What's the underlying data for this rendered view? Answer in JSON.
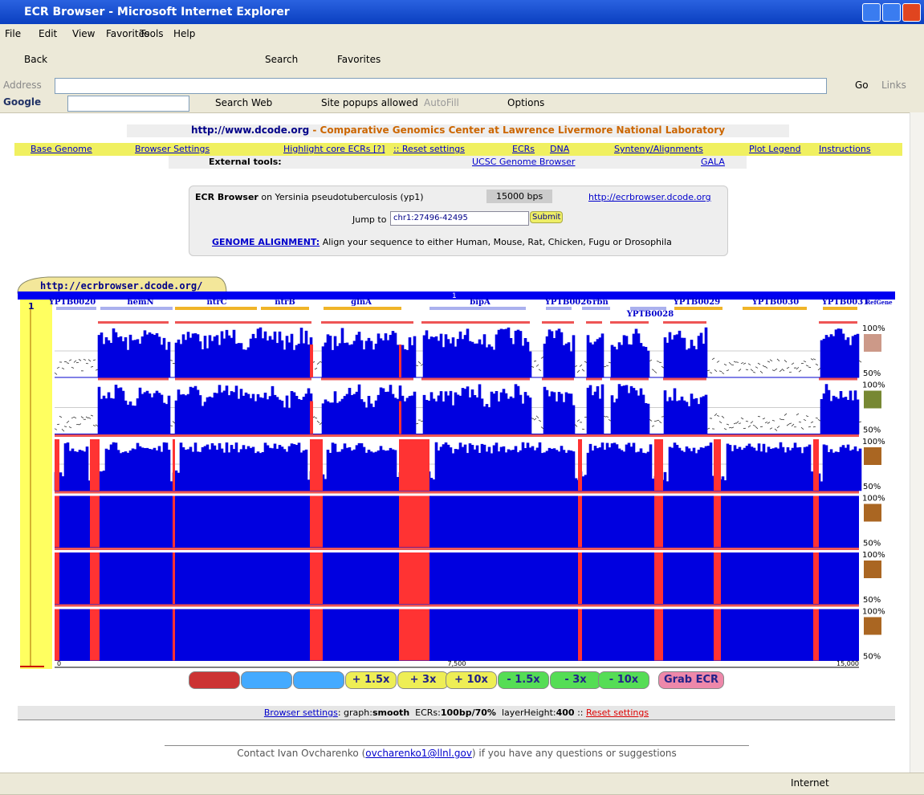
{
  "window": {
    "title": "ECR Browser - Microsoft Internet Explorer"
  },
  "menu": [
    "File",
    "Edit",
    "View",
    "Favorites",
    "Tools",
    "Help"
  ],
  "toolbar": {
    "back": "Back",
    "search": "Search",
    "favorites": "Favorites"
  },
  "address": {
    "label": "Address",
    "go": "Go",
    "links": "Links"
  },
  "google": {
    "logo": "Google",
    "search": "Search Web",
    "popups": "Site popups allowed",
    "autofill": "AutoFill",
    "options": "Options"
  },
  "header": {
    "url": "http://www.dcode.org",
    "sep": " - ",
    "title": "Comparative Genomics Center at Lawrence Livermore National Laboratory"
  },
  "nav": [
    "Base Genome",
    "Browser Settings",
    "Highlight core ECRs [?]",
    ":: Reset settings",
    "ECRs",
    "DNA",
    "Synteny/Alignments",
    "Plot Legend",
    "Instructions"
  ],
  "external": {
    "label": "External tools:",
    "links": [
      "UCSC Genome Browser",
      "GALA"
    ]
  },
  "ecr_box": {
    "name": "ECR Browser",
    "on": "on Yersinia pseudotuberculosis (yp1)",
    "size": "15000 bps",
    "url": "http://ecrbrowser.dcode.org",
    "jump_label": "Jump to",
    "jump_value": "chr1:27496-42495",
    "submit": "Submit",
    "alignment_label": "GENOME ALIGNMENT:",
    "alignment_text": "Align your sequence to either Human, Mouse, Rat, Chicken, Fugu or Drosophila"
  },
  "browser": {
    "tab": "http://ecrbrowser.dcode.org/",
    "row": "1",
    "genes": [
      "YPTB0020",
      "hemN",
      "ntrC",
      "ntrB",
      "glnA",
      "bipA",
      "YPTB0026",
      "rbn",
      "YPTB0028",
      "YPTB0029",
      "YPTB0030",
      "YPTB0031",
      "RefGene"
    ],
    "top_label": "100%",
    "bottom_label": "50%",
    "axis": [
      "0",
      "7,500",
      "15,000"
    ]
  },
  "buttons": [
    "+ 1.5x",
    "+ 3x",
    "+ 10x",
    "- 1.5x",
    "- 3x",
    "- 10x",
    "Grab ECR"
  ],
  "footer": {
    "settings": "Browser settings",
    "graph_label": ": graph:",
    "graph": "smooth",
    "ecrs_label": "ECRs:",
    "ecrs": "100bp/70%",
    "layer_label": "layerHeight:",
    "layer": "400",
    "sep": "::",
    "reset": "Reset settings"
  },
  "contact": {
    "prefix": "Contact Ivan Ovcharenko (",
    "email": "ovcharenko1@llnl.gov",
    "suffix": ") if you have any questions or suggestions"
  },
  "status": {
    "zone": "Internet"
  }
}
